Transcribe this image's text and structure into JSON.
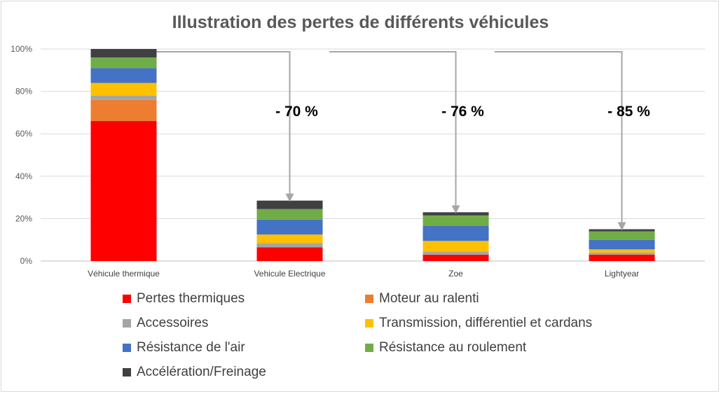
{
  "chart_data": {
    "type": "bar",
    "stacked": true,
    "title": "Illustration des pertes de différents véhicules",
    "categories": [
      "Véhicule thermique",
      "Vehicule Electrique",
      "Zoe",
      "Lightyear"
    ],
    "y_ticks": [
      "0%",
      "20%",
      "40%",
      "60%",
      "80%",
      "100%"
    ],
    "ylim": [
      0,
      100
    ],
    "grid": true,
    "legend_position": "bottom",
    "series": [
      {
        "name": "Pertes thermiques",
        "color": "#ff0000",
        "values": [
          66,
          6.5,
          3,
          3
        ]
      },
      {
        "name": "Moteur au ralenti",
        "color": "#ed7d31",
        "values": [
          10,
          0,
          0,
          0
        ]
      },
      {
        "name": "Accessoires",
        "color": "#a5a5a5",
        "values": [
          2,
          2,
          1.5,
          1
        ]
      },
      {
        "name": "Transmission, différentiel et cardans",
        "color": "#ffc000",
        "values": [
          6,
          4,
          5,
          1.5
        ]
      },
      {
        "name": "Résistance de l'air",
        "color": "#4472c4",
        "values": [
          7,
          7,
          7,
          4.5
        ]
      },
      {
        "name": "Résistance au roulement",
        "color": "#70ad47",
        "values": [
          5,
          5,
          5,
          4
        ]
      },
      {
        "name": "Accélération/Freinage",
        "color": "#404040",
        "values": [
          4,
          4,
          1.5,
          1
        ]
      }
    ],
    "annotations": [
      "- 70 %",
      "- 76 %",
      "- 85 %"
    ],
    "annotation_color": "#a6a6a6"
  }
}
